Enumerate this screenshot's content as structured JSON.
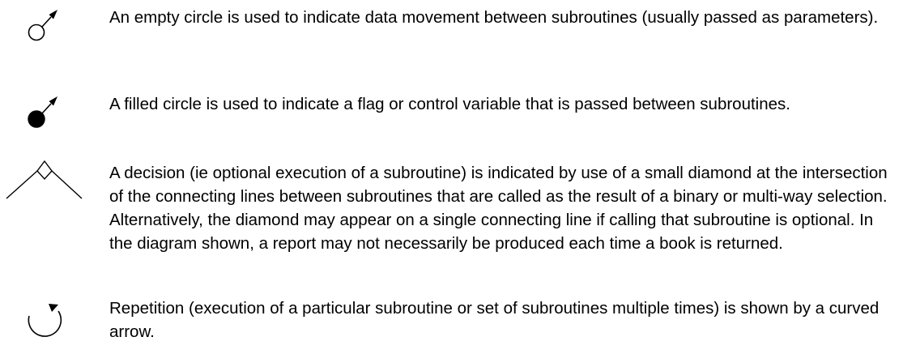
{
  "legend": {
    "items": [
      {
        "icon": "empty-circle-arrow-icon",
        "text": "An empty circle is used to indicate data movement between subroutines (usually passed as parameters)."
      },
      {
        "icon": "filled-circle-arrow-icon",
        "text": "A filled circle is used to indicate a flag or control variable that is passed between subroutines."
      },
      {
        "icon": "decision-diamond-icon",
        "text": "A decision (ie optional execution of a subroutine) is indicated by use of a small diamond at the intersection of the connecting lines between subroutines that are called as the result of a binary or multi-way selection. Alternatively, the diamond may appear on a single connecting line if calling that subroutine is optional. In the diagram shown, a report may not necessarily be produced each time a book is returned."
      },
      {
        "icon": "repetition-curved-arrow-icon",
        "text": "Repetition (execution of a particular subroutine or set of subroutines multiple times) is shown by a curved arrow."
      }
    ]
  },
  "colors": {
    "ink": "#000000",
    "background": "#ffffff"
  }
}
